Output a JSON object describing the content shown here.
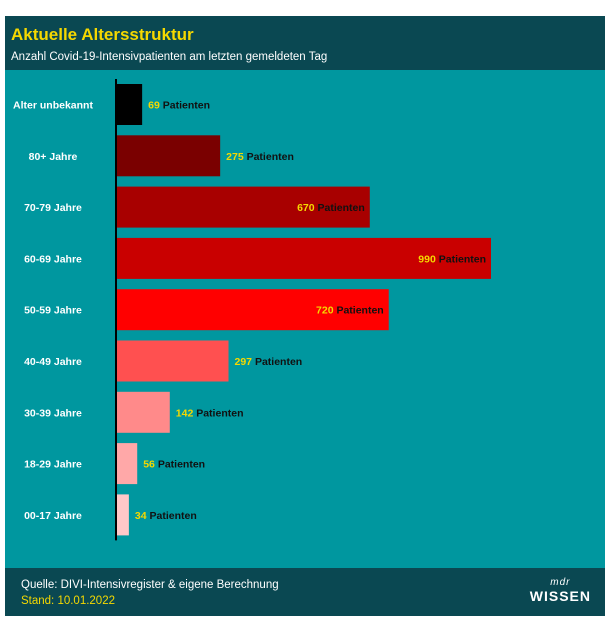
{
  "title": "Aktuelle Altersstruktur",
  "subtitle": "Anzahl Covid-19-Intensivpatienten am letzten gemeldeten Tag",
  "footer": {
    "source": "Quelle: DIVI-Intensivregister & eigene Berechnung",
    "date": "Stand: 10.01.2022",
    "logo_top": "mdr",
    "logo_bottom": "WISSEN"
  },
  "chart_data": {
    "type": "bar",
    "orientation": "horizontal",
    "title": "Aktuelle Altersstruktur",
    "subtitle": "Anzahl Covid-19-Intensivpatienten am letzten gemeldeten Tag",
    "xlabel": "",
    "ylabel": "",
    "value_suffix": "Patienten",
    "grid": false,
    "legend": "none",
    "categories": [
      "Alter unbekannt",
      "80+ Jahre",
      "70-79 Jahre",
      "60-69 Jahre",
      "50-59 Jahre",
      "40-49 Jahre",
      "30-39 Jahre",
      "18-29 Jahre",
      "00-17 Jahre"
    ],
    "values": [
      69,
      275,
      670,
      990,
      720,
      297,
      142,
      56,
      34
    ],
    "colors": [
      "#000000",
      "#7a0000",
      "#a80000",
      "#c90000",
      "#ff0000",
      "#ff5050",
      "#ff8a8a",
      "#ffa8a8",
      "#ffc8c8"
    ],
    "xlim": [
      0,
      990
    ]
  }
}
